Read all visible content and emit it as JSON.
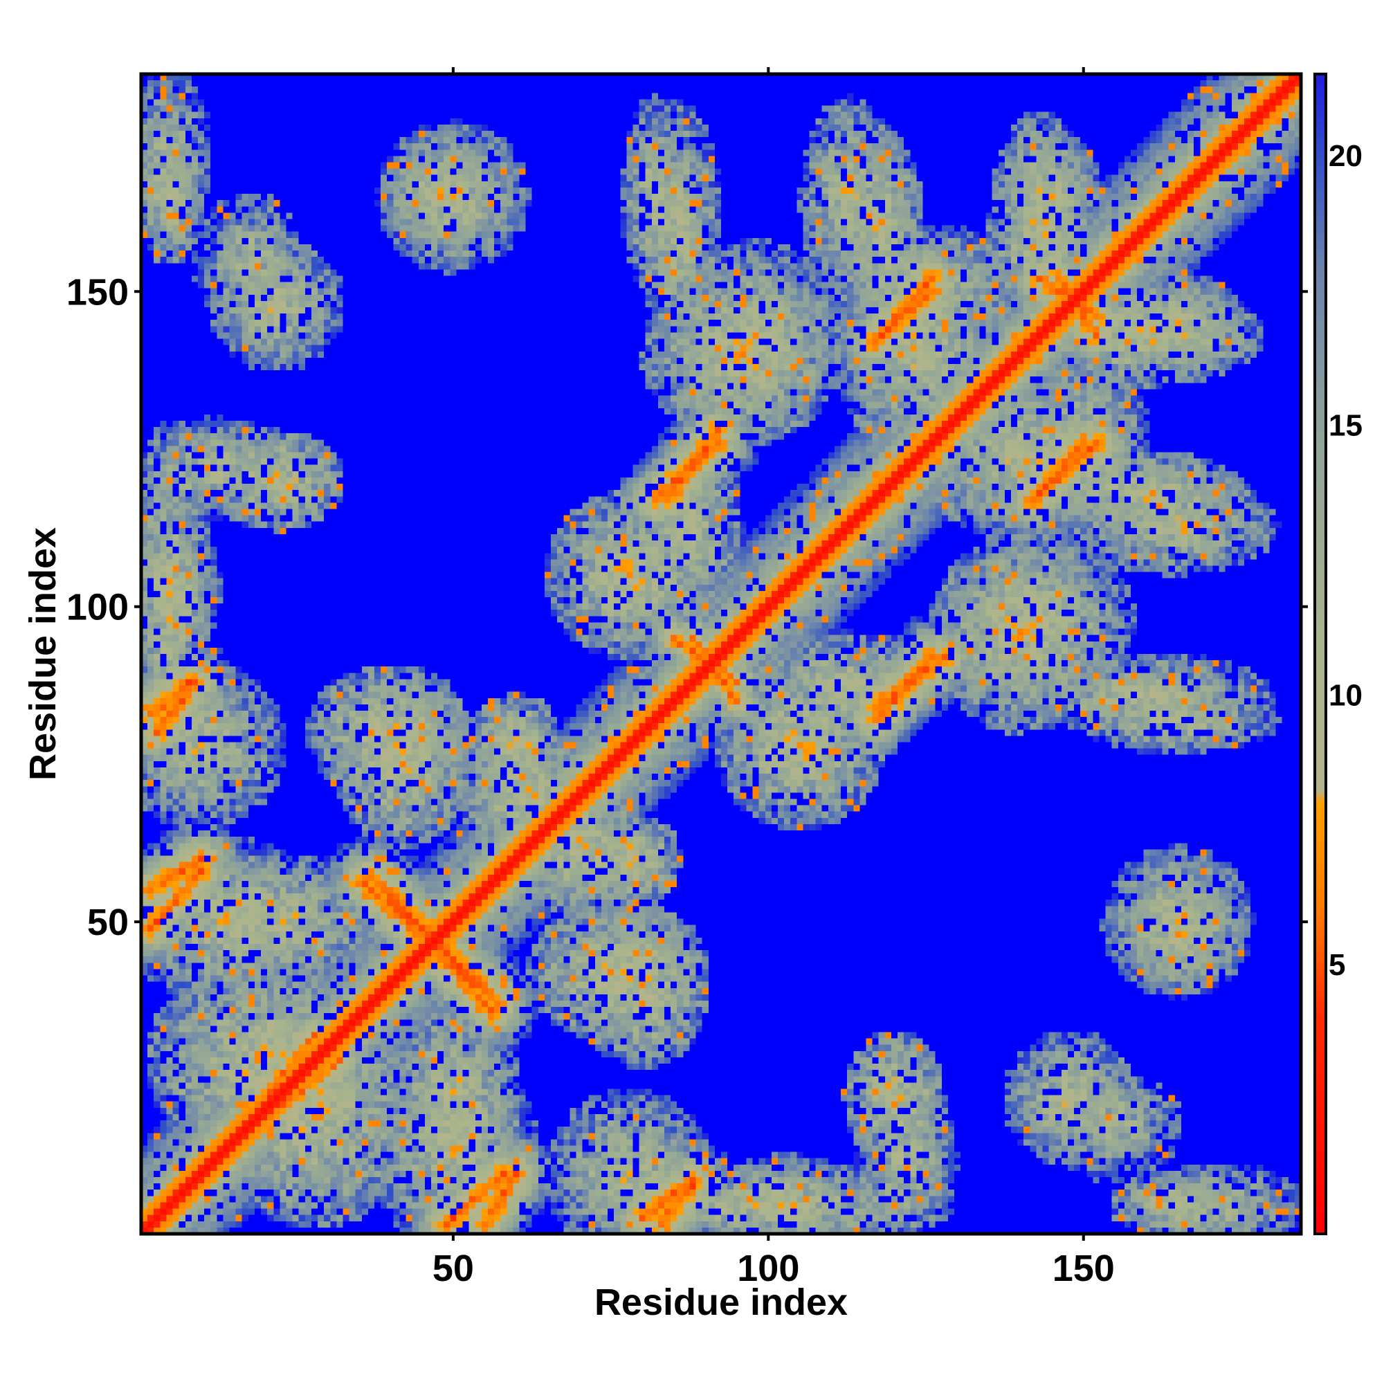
{
  "chart_data": {
    "type": "heatmap",
    "title": "",
    "xlabel": "Residue index",
    "ylabel": "Residue index",
    "n_residues": 184,
    "xlim": [
      1,
      184
    ],
    "ylim": [
      1,
      184
    ],
    "x_ticks": [
      50,
      100,
      150
    ],
    "y_ticks": [
      50,
      100,
      150
    ],
    "x_tick_labels": [
      "50",
      "100",
      "150"
    ],
    "y_tick_labels": [
      "50",
      "100",
      "150"
    ],
    "colorbar": {
      "range": [
        0,
        21.5
      ],
      "ticks": [
        5,
        10,
        15,
        20
      ],
      "tick_labels": [
        "5",
        "10",
        "15",
        "20"
      ],
      "colors": {
        "near": "#ff0000",
        "mid": "#ff8c00",
        "far": "#9aae8a",
        "beyond": "#0000ff"
      },
      "stops": [
        {
          "value": 0,
          "color": "#ff0000"
        },
        {
          "value": 4,
          "color": "#ff2a00"
        },
        {
          "value": 6,
          "color": "#ff7a00"
        },
        {
          "value": 8,
          "color": "#ffa000"
        },
        {
          "value": 8.2,
          "color": "#b6b48a"
        },
        {
          "value": 11,
          "color": "#a8b48c"
        },
        {
          "value": 15,
          "color": "#8ea29a"
        },
        {
          "value": 18,
          "color": "#6882ae"
        },
        {
          "value": 20,
          "color": "#3050c8"
        },
        {
          "value": 21.5,
          "color": "#2020e0"
        }
      ]
    },
    "diagonal_contacts": [
      {
        "start": 1,
        "end": 184,
        "band_halfwidth": 1.5
      }
    ],
    "contact_segments": [
      {
        "x1": 2,
        "y1": 55,
        "x2": 10,
        "y2": 60,
        "w": 2.2
      },
      {
        "x1": 2,
        "y1": 83,
        "x2": 8,
        "y2": 88,
        "w": 2.2
      },
      {
        "x1": 37,
        "y1": 57,
        "x2": 46,
        "y2": 48,
        "w": 2.4
      },
      {
        "x1": 48,
        "y1": 45,
        "x2": 56,
        "y2": 36,
        "w": 2.4
      },
      {
        "x1": 49,
        "y1": 2,
        "x2": 58,
        "y2": 10,
        "w": 2.2
      },
      {
        "x1": 80,
        "y1": 3,
        "x2": 88,
        "y2": 9,
        "w": 2.2
      },
      {
        "x1": 82,
        "y1": 117,
        "x2": 92,
        "y2": 126,
        "w": 2.2
      },
      {
        "x1": 117,
        "y1": 84,
        "x2": 128,
        "y2": 92,
        "w": 2.2
      },
      {
        "x1": 117,
        "y1": 142,
        "x2": 126,
        "y2": 152,
        "w": 2.2
      },
      {
        "x1": 142,
        "y1": 117,
        "x2": 150,
        "y2": 126,
        "w": 2.2
      },
      {
        "x1": 143,
        "y1": 152,
        "x2": 152,
        "y2": 146,
        "w": 2.0
      },
      {
        "x1": 14,
        "y1": 14,
        "x2": 28,
        "y2": 32,
        "w": 1.6
      },
      {
        "x1": 85,
        "y1": 95,
        "x2": 95,
        "y2": 88,
        "w": 1.6
      }
    ],
    "interaction_regions": [
      {
        "x": 5,
        "y": 172,
        "sx": 5,
        "sy": 10,
        "a": 11
      },
      {
        "x": 18,
        "y": 155,
        "sx": 7,
        "sy": 8,
        "a": 11
      },
      {
        "x": 48,
        "y": 166,
        "sx": 7,
        "sy": 7,
        "a": 9
      },
      {
        "x": 82,
        "y": 165,
        "sx": 4,
        "sy": 12,
        "a": 10
      },
      {
        "x": 113,
        "y": 165,
        "sx": 6,
        "sy": 12,
        "a": 10
      },
      {
        "x": 145,
        "y": 165,
        "sx": 6,
        "sy": 8,
        "a": 10
      },
      {
        "x": 96,
        "y": 140,
        "sx": 12,
        "sy": 10,
        "a": 9
      },
      {
        "x": 125,
        "y": 150,
        "sx": 12,
        "sy": 8,
        "a": 10
      },
      {
        "x": 160,
        "y": 143,
        "sx": 14,
        "sy": 6,
        "a": 9
      },
      {
        "x": 12,
        "y": 122,
        "sx": 9,
        "sy": 6,
        "a": 10
      },
      {
        "x": 5,
        "y": 103,
        "sx": 6,
        "sy": 10,
        "a": 10
      },
      {
        "x": 78,
        "y": 105,
        "sx": 10,
        "sy": 10,
        "a": 9
      },
      {
        "x": 140,
        "y": 124,
        "sx": 14,
        "sy": 10,
        "a": 10
      },
      {
        "x": 160,
        "y": 118,
        "sx": 12,
        "sy": 5,
        "a": 9
      },
      {
        "x": 142,
        "y": 98,
        "sx": 12,
        "sy": 10,
        "a": 10
      },
      {
        "x": 160,
        "y": 86,
        "sx": 15,
        "sy": 5,
        "a": 10
      },
      {
        "x": 112,
        "y": 88,
        "sx": 12,
        "sy": 6,
        "a": 10
      },
      {
        "x": 10,
        "y": 78,
        "sx": 10,
        "sy": 10,
        "a": 10
      },
      {
        "x": 40,
        "y": 80,
        "sx": 10,
        "sy": 8,
        "a": 9
      },
      {
        "x": 14,
        "y": 50,
        "sx": 12,
        "sy": 10,
        "a": 10
      },
      {
        "x": 20,
        "y": 28,
        "sx": 14,
        "sy": 12,
        "a": 9
      },
      {
        "x": 50,
        "y": 22,
        "sx": 8,
        "sy": 14,
        "a": 10
      },
      {
        "x": 75,
        "y": 42,
        "sx": 10,
        "sy": 8,
        "a": 9
      },
      {
        "x": 100,
        "y": 5,
        "sx": 22,
        "sy": 5,
        "a": 10
      },
      {
        "x": 120,
        "y": 22,
        "sx": 6,
        "sy": 8,
        "a": 9
      },
      {
        "x": 148,
        "y": 22,
        "sx": 8,
        "sy": 8,
        "a": 10
      },
      {
        "x": 165,
        "y": 5,
        "sx": 8,
        "sy": 4,
        "a": 9
      },
      {
        "x": 165,
        "y": 50,
        "sx": 9,
        "sy": 9,
        "a": 10
      },
      {
        "x": 70,
        "y": 62,
        "sx": 8,
        "sy": 8,
        "a": 9
      },
      {
        "x": 60,
        "y": 78,
        "sx": 6,
        "sy": 6,
        "a": 9
      }
    ]
  }
}
